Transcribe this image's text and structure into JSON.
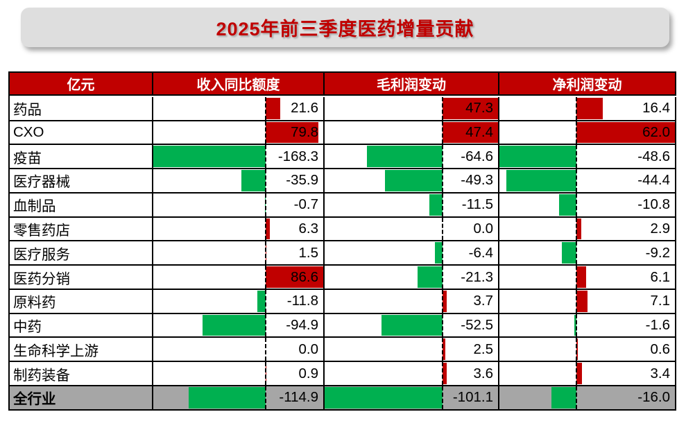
{
  "chart_data": {
    "type": "table",
    "title": "2025年前三季度医药增量贡献",
    "unit_label": "亿元",
    "columns": [
      "收入同比额度",
      "毛利润变动",
      "净利润变动"
    ],
    "rows": [
      {
        "label": "药品",
        "values": [
          21.6,
          47.3,
          16.4
        ]
      },
      {
        "label": "CXO",
        "values": [
          79.8,
          47.4,
          62.0
        ]
      },
      {
        "label": "疫苗",
        "values": [
          -168.3,
          -64.6,
          -48.6
        ]
      },
      {
        "label": "医疗器械",
        "values": [
          -35.9,
          -49.3,
          -44.4
        ]
      },
      {
        "label": "血制品",
        "values": [
          -0.7,
          -11.5,
          -10.8
        ]
      },
      {
        "label": "零售药店",
        "values": [
          6.3,
          0.0,
          2.9
        ]
      },
      {
        "label": "医疗服务",
        "values": [
          1.5,
          -6.4,
          -9.2
        ]
      },
      {
        "label": "医药分销",
        "values": [
          86.6,
          -21.3,
          6.1
        ]
      },
      {
        "label": "原料药",
        "values": [
          -11.8,
          3.7,
          7.1
        ]
      },
      {
        "label": "中药",
        "values": [
          -94.9,
          -52.5,
          -1.6
        ]
      },
      {
        "label": "生命科学上游",
        "values": [
          0.0,
          2.5,
          0.6
        ]
      },
      {
        "label": "制药装备",
        "values": [
          0.9,
          3.6,
          3.4
        ]
      }
    ],
    "total_row": {
      "label": "全行业",
      "values": [
        -114.9,
        -101.1,
        -16.0
      ]
    },
    "number_format": "1-decimal",
    "layout_hints": {
      "bar_style": "in-cell data bars with per-column auto scale",
      "zero_axis": "dashed vertical line per column"
    }
  },
  "colors": {
    "positive_bar": "#C00000",
    "negative_bar": "#00B050",
    "header_bg": "#C00000",
    "header_text": "#FFFFFF",
    "total_row_bg": "#A6A6A6",
    "title_text": "#C00000",
    "title_banner_bg": "#DEDEDE",
    "grid_border": "#000000"
  }
}
